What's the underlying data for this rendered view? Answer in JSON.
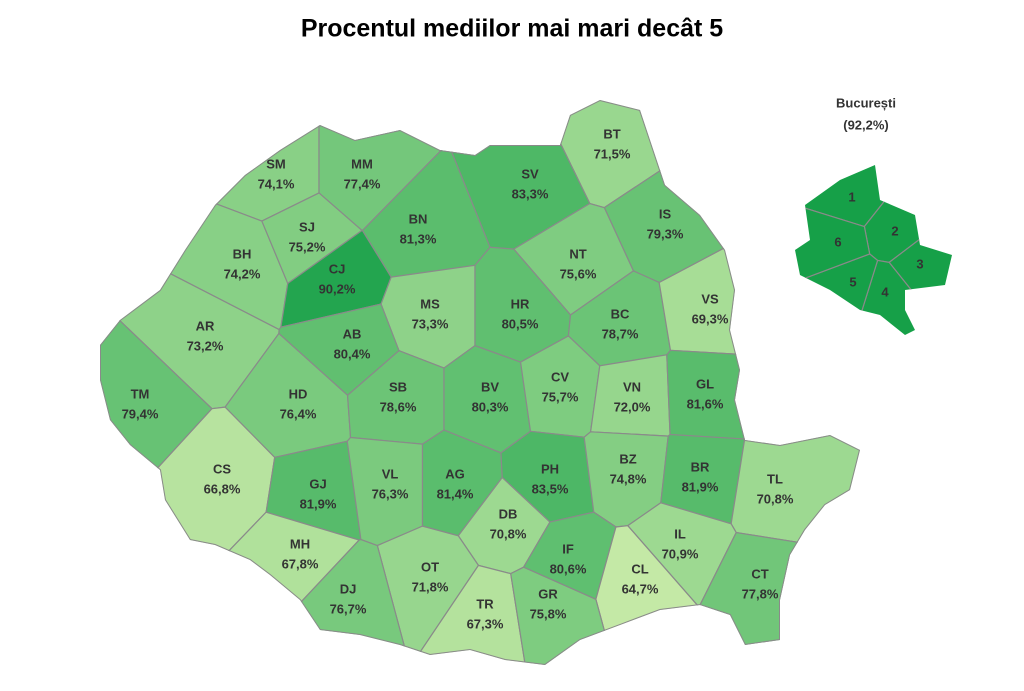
{
  "chart_data": {
    "type": "map",
    "title": "Procentul mediilor mai mari decât 5",
    "categories": [
      "SM",
      "MM",
      "BT",
      "SV",
      "BH",
      "SJ",
      "BN",
      "CJ",
      "IS",
      "NT",
      "AR",
      "MS",
      "HR",
      "BC",
      "VS",
      "AB",
      "TM",
      "HD",
      "SB",
      "BV",
      "CV",
      "VN",
      "GL",
      "CS",
      "GJ",
      "VL",
      "AG",
      "PH",
      "BZ",
      "BR",
      "TL",
      "DB",
      "IL",
      "MH",
      "OT",
      "IF",
      "CL",
      "CT",
      "DJ",
      "TR",
      "GR"
    ],
    "values": [
      74.1,
      77.4,
      71.5,
      83.3,
      74.2,
      75.2,
      81.3,
      90.2,
      79.3,
      75.6,
      73.2,
      73.3,
      80.5,
      78.7,
      69.3,
      80.4,
      79.4,
      76.4,
      78.6,
      80.3,
      75.7,
      72.0,
      81.6,
      66.8,
      81.9,
      76.3,
      81.4,
      83.5,
      74.8,
      81.9,
      70.8,
      70.8,
      70.9,
      67.8,
      71.8,
      80.6,
      64.7,
      77.8,
      76.7,
      67.3,
      75.8
    ],
    "value_labels": [
      "74,1%",
      "77,4%",
      "71,5%",
      "83,3%",
      "74,2%",
      "75,2%",
      "81,3%",
      "90,2%",
      "79,3%",
      "75,6%",
      "73,2%",
      "73,3%",
      "80,5%",
      "78,7%",
      "69,3%",
      "80,4%",
      "79,4%",
      "76,4%",
      "78,6%",
      "80,3%",
      "75,7%",
      "72,0%",
      "81,6%",
      "66,8%",
      "81,9%",
      "76,3%",
      "81,4%",
      "83,5%",
      "74,8%",
      "81,9%",
      "70,8%",
      "70,8%",
      "70,9%",
      "67,8%",
      "71,8%",
      "80,6%",
      "64,7%",
      "77,8%",
      "76,7%",
      "67,3%",
      "75,8%"
    ],
    "inset": {
      "title": "București",
      "value": 92.2,
      "value_label": "(92,2%)",
      "sectors": [
        "1",
        "2",
        "3",
        "4",
        "5",
        "6"
      ]
    }
  }
}
